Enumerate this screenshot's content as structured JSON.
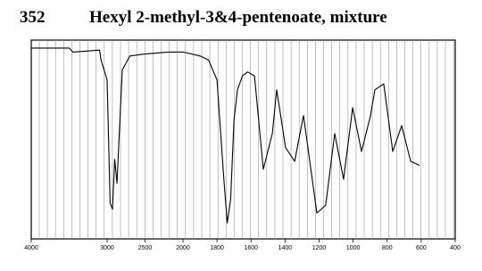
{
  "chart_data": {
    "type": "line",
    "number": "352",
    "title": "Hexyl 2-methyl-3&4-pentenoate, mixture",
    "x": [
      4000,
      3500,
      3450,
      3100,
      3080,
      3000,
      2960,
      2930,
      2900,
      2870,
      2850,
      2800,
      2700,
      2500,
      2200,
      2000,
      1900,
      1850,
      1800,
      1760,
      1740,
      1720,
      1700,
      1680,
      1650,
      1620,
      1580,
      1528,
      1475,
      1449,
      1397,
      1344,
      1292,
      1213,
      1161,
      1108,
      1056,
      1003,
      951,
      898,
      872,
      820,
      767,
      715,
      662,
      610
    ],
    "series": [
      {
        "color": "#000000",
        "values": [
          96,
          96,
          94,
          95,
          90,
          80,
          18,
          15,
          40,
          28,
          45,
          85,
          92,
          93,
          94,
          94,
          92,
          90,
          80,
          30,
          8,
          20,
          60,
          75,
          82,
          84,
          82,
          35,
          53,
          75,
          46,
          39,
          62,
          13,
          17,
          53,
          30,
          66,
          44,
          62,
          75,
          78,
          44,
          57,
          39,
          37
        ]
      }
    ],
    "xlim": [
      4000,
      400
    ],
    "ylim": [
      0,
      100
    ],
    "xticks": [
      4000,
      3000,
      2500,
      2000,
      1800,
      1600,
      1400,
      1200,
      1000,
      800,
      600,
      400
    ]
  }
}
